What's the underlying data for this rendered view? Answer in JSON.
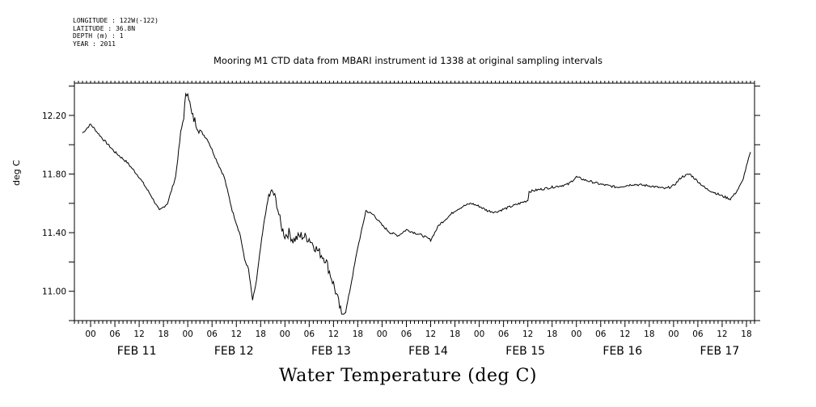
{
  "meta_lines": [
    "LONGITUDE : 122W(-122)",
    "LATITUDE : 36.8N",
    "DEPTH (m) : 1",
    "YEAR : 2011"
  ],
  "chart_data": {
    "type": "line",
    "title": "Mooring M1 CTD data from MBARI instrument id 1338 at original sampling intervals",
    "xlabel": "Water Temperature (deg C)",
    "ylabel": "deg C",
    "x_unit": "hours since 00:00 FEB 11 2011",
    "xlim": [
      -4,
      164
    ],
    "ylim": [
      10.8,
      12.42
    ],
    "yticks": [
      "11.00",
      "11.40",
      "11.80",
      "12.20"
    ],
    "ytick_values": [
      11.0,
      11.4,
      11.8,
      12.2
    ],
    "hour_ticks": [
      "00",
      "06",
      "12",
      "18",
      "00",
      "06",
      "12",
      "18",
      "00",
      "06",
      "12",
      "18",
      "00",
      "06",
      "12",
      "18",
      "00",
      "06",
      "12",
      "18",
      "00",
      "06",
      "12",
      "18",
      "00",
      "06",
      "12",
      "18"
    ],
    "day_labels": [
      "FEB 11",
      "FEB 12",
      "FEB 13",
      "FEB 14",
      "FEB 15",
      "FEB 16",
      "FEB 17"
    ],
    "series": [
      {
        "x": [
          -2,
          0,
          3,
          6,
          9,
          12,
          15,
          17,
          19,
          21,
          22,
          23,
          23.5,
          24,
          24.5,
          25,
          27,
          29,
          31,
          33,
          35,
          37,
          38,
          39,
          40,
          40.5,
          41,
          42,
          43,
          44,
          45,
          46,
          47,
          48,
          49,
          50,
          52,
          54,
          56,
          58,
          60,
          61,
          62,
          63,
          64,
          65,
          66,
          67,
          68,
          70,
          72,
          74,
          76,
          78,
          80,
          82,
          84,
          86,
          88,
          90,
          92,
          94,
          96,
          98,
          100,
          102,
          104,
          106,
          108,
          108.3,
          110,
          114,
          118,
          120,
          122,
          126,
          130,
          134,
          138,
          142,
          144,
          146,
          148,
          152,
          156,
          158,
          159,
          160,
          161,
          162,
          163
        ],
        "y": [
          12.08,
          12.14,
          12.04,
          11.95,
          11.88,
          11.78,
          11.65,
          11.55,
          11.6,
          11.78,
          12.02,
          12.2,
          12.32,
          12.38,
          12.28,
          12.2,
          12.1,
          12.03,
          11.9,
          11.78,
          11.55,
          11.38,
          11.22,
          11.15,
          10.94,
          11.0,
          11.08,
          11.3,
          11.5,
          11.65,
          11.68,
          11.6,
          11.45,
          11.38,
          11.4,
          11.35,
          11.38,
          11.36,
          11.28,
          11.22,
          11.05,
          10.95,
          10.84,
          10.86,
          11.0,
          11.15,
          11.3,
          11.42,
          11.55,
          11.52,
          11.45,
          11.4,
          11.38,
          11.42,
          11.4,
          11.38,
          11.35,
          11.45,
          11.5,
          11.55,
          11.58,
          11.6,
          11.58,
          11.55,
          11.54,
          11.56,
          11.58,
          11.6,
          11.62,
          11.68,
          11.69,
          11.71,
          11.73,
          11.78,
          11.76,
          11.73,
          11.71,
          11.73,
          11.72,
          11.7,
          11.72,
          11.78,
          11.8,
          11.7,
          11.65,
          11.63,
          11.66,
          11.7,
          11.75,
          11.85,
          11.95
        ]
      }
    ]
  }
}
